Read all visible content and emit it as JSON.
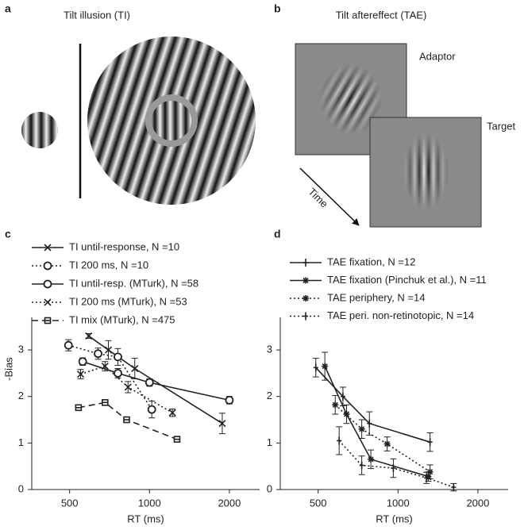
{
  "panels": {
    "a": {
      "label": "a",
      "title": "Tilt illusion (TI)"
    },
    "b": {
      "label": "b",
      "title": "Tilt aftereffect (TAE)",
      "adaptor": "Adaptor",
      "target": "Target",
      "time": "Time"
    }
  },
  "chart_data": [
    {
      "type": "line",
      "panel_label": "c",
      "xlabel": "RT (ms)",
      "ylabel": "-Bias",
      "xscale": "log",
      "xlim": [
        360,
        2600
      ],
      "ylim": [
        0,
        3.7
      ],
      "xticks": [
        500,
        1000,
        2000
      ],
      "yticks": [
        0,
        1,
        2,
        3
      ],
      "series": [
        {
          "name": "TI until-response, N =10",
          "color": "#222222",
          "linestyle": "solid",
          "marker": "x",
          "x": [
            590,
            700,
            880,
            1880
          ],
          "values": [
            3.3,
            3.0,
            2.6,
            1.42
          ],
          "errors": [
            0.05,
            0.2,
            0.22,
            0.22
          ]
        },
        {
          "name": "TI 200 ms, N =10",
          "color": "#222222",
          "linestyle": "dotted",
          "marker": "o",
          "x": [
            495,
            640,
            760,
            1020
          ],
          "values": [
            3.1,
            2.92,
            2.85,
            1.72
          ],
          "errors": [
            0.12,
            0.12,
            0.18,
            0.18
          ]
        },
        {
          "name": "TI until-resp. (MTurk), N =58",
          "color": "#222222",
          "linestyle": "solid",
          "marker": "o",
          "x": [
            560,
            760,
            1000,
            2000
          ],
          "values": [
            2.75,
            2.5,
            2.3,
            1.92
          ],
          "errors": [
            0.08,
            0.1,
            0.08,
            0.08
          ]
        },
        {
          "name": "TI 200 ms (MTurk), N =53",
          "color": "#222222",
          "linestyle": "dotted",
          "marker": "x",
          "x": [
            550,
            680,
            830,
            1220
          ],
          "values": [
            2.48,
            2.65,
            2.2,
            1.65
          ],
          "errors": [
            0.1,
            0.1,
            0.12,
            0.08
          ]
        },
        {
          "name": "TI mix (MTurk), N =475",
          "color": "#222222",
          "linestyle": "dashed",
          "marker": "square",
          "x": [
            540,
            680,
            820,
            1270
          ],
          "values": [
            1.76,
            1.87,
            1.5,
            1.08
          ],
          "errors": [
            0.04,
            0.04,
            0.04,
            0.04
          ]
        }
      ]
    },
    {
      "type": "line",
      "panel_label": "d",
      "xlabel": "RT (ms)",
      "xscale": "log",
      "xlim": [
        360,
        2600
      ],
      "ylim": [
        0,
        3.7
      ],
      "xticks": [
        500,
        1000,
        2000
      ],
      "yticks": [
        0,
        1,
        2,
        3
      ],
      "series": [
        {
          "name": "TAE fixation, N =12",
          "color": "#222222",
          "linestyle": "solid",
          "marker": "plus",
          "x": [
            490,
            620,
            780,
            1320
          ],
          "values": [
            2.62,
            2.0,
            1.42,
            1.02
          ],
          "errors": [
            0.2,
            0.2,
            0.25,
            0.2
          ]
        },
        {
          "name": "TAE fixation (Pinchuk et al.), N =11",
          "color": "#222222",
          "linestyle": "solid",
          "marker": "star",
          "x": [
            530,
            640,
            790,
            1300
          ],
          "values": [
            2.65,
            1.62,
            0.65,
            0.28
          ],
          "errors": [
            0.3,
            0.2,
            0.2,
            0.1
          ]
        },
        {
          "name": "TAE periphery, N =14",
          "color": "#222222",
          "linestyle": "dotted",
          "marker": "star",
          "x": [
            580,
            730,
            910,
            1320
          ],
          "values": [
            1.82,
            1.3,
            0.98,
            0.38
          ],
          "errors": [
            0.2,
            0.2,
            0.15,
            0.15
          ]
        },
        {
          "name": "TAE peri. non-retinotopic, N =14",
          "color": "#222222",
          "linestyle": "dotted",
          "marker": "plus",
          "x": [
            600,
            730,
            960,
            1280,
            1620
          ],
          "values": [
            1.05,
            0.52,
            0.46,
            0.25,
            0.05
          ],
          "errors": [
            0.3,
            0.2,
            0.2,
            0.12,
            0.08
          ]
        }
      ]
    }
  ]
}
